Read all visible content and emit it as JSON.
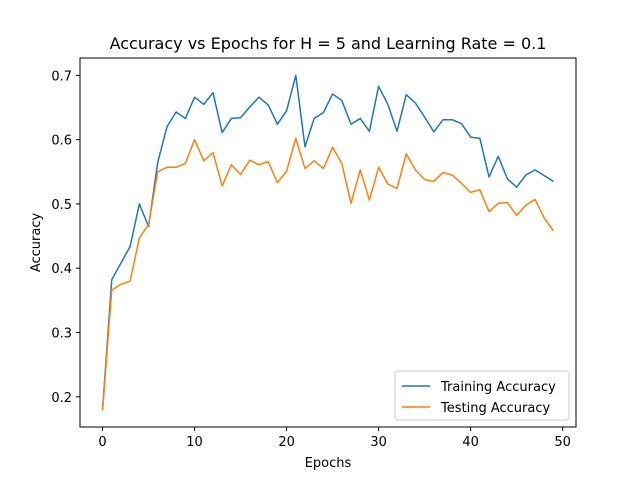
{
  "chart_data": {
    "type": "line",
    "title": "Accuracy vs Epochs for H = 5 and Learning Rate = 0.1",
    "xlabel": "Epochs",
    "ylabel": "Accuracy",
    "xlim": [
      -2.45,
      51.45
    ],
    "ylim": [
      0.153,
      0.727
    ],
    "xticks": [
      0,
      10,
      20,
      30,
      40,
      50
    ],
    "yticks": [
      0.2,
      0.3,
      0.4,
      0.5,
      0.6,
      0.7
    ],
    "grid": false,
    "legend_position": "lower-right",
    "x": [
      0,
      1,
      2,
      3,
      4,
      5,
      6,
      7,
      8,
      9,
      10,
      11,
      12,
      13,
      14,
      15,
      16,
      17,
      18,
      19,
      20,
      21,
      22,
      23,
      24,
      25,
      26,
      27,
      28,
      29,
      30,
      31,
      32,
      33,
      34,
      35,
      36,
      37,
      38,
      39,
      40,
      41,
      42,
      43,
      44,
      45,
      46,
      47,
      48,
      49
    ],
    "series": [
      {
        "name": "Training Accuracy",
        "color": "#1f77b4",
        "values": [
          0.18,
          0.382,
          0.408,
          0.434,
          0.5,
          0.465,
          0.565,
          0.62,
          0.643,
          0.633,
          0.666,
          0.655,
          0.673,
          0.611,
          0.633,
          0.634,
          0.651,
          0.666,
          0.654,
          0.624,
          0.645,
          0.7,
          0.589,
          0.633,
          0.642,
          0.671,
          0.661,
          0.624,
          0.633,
          0.613,
          0.683,
          0.655,
          0.613,
          0.67,
          0.657,
          0.635,
          0.612,
          0.631,
          0.631,
          0.625,
          0.604,
          0.602,
          0.542,
          0.574,
          0.539,
          0.526,
          0.545,
          0.553,
          0.544,
          0.535
        ]
      },
      {
        "name": "Testing Accuracy",
        "color": "#ff7f0e",
        "values": [
          0.179,
          0.366,
          0.375,
          0.38,
          0.447,
          0.468,
          0.55,
          0.557,
          0.557,
          0.563,
          0.6,
          0.567,
          0.58,
          0.528,
          0.561,
          0.546,
          0.568,
          0.561,
          0.566,
          0.533,
          0.551,
          0.602,
          0.555,
          0.567,
          0.555,
          0.588,
          0.563,
          0.501,
          0.553,
          0.506,
          0.557,
          0.531,
          0.524,
          0.578,
          0.553,
          0.538,
          0.535,
          0.549,
          0.545,
          0.532,
          0.518,
          0.522,
          0.488,
          0.501,
          0.502,
          0.482,
          0.498,
          0.507,
          0.478,
          0.458
        ]
      }
    ]
  }
}
